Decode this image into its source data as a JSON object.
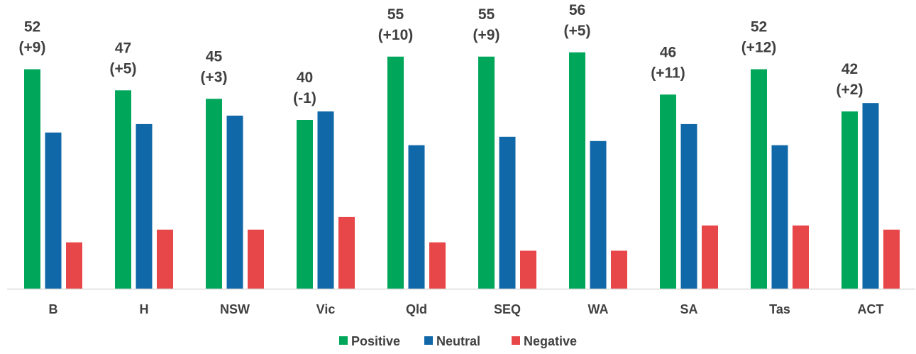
{
  "chart_data": {
    "type": "bar",
    "categories": [
      "B",
      "H",
      "NSW",
      "Vic",
      "Qld",
      "SEQ",
      "WA",
      "SA",
      "Tas",
      "ACT"
    ],
    "series": [
      {
        "name": "Positive",
        "color": "#00A65A",
        "values": [
          52,
          47,
          45,
          40,
          55,
          55,
          56,
          46,
          52,
          42
        ]
      },
      {
        "name": "Neutral",
        "color": "#1068A8",
        "values": [
          37,
          39,
          41,
          42,
          34,
          36,
          35,
          39,
          34,
          44
        ]
      },
      {
        "name": "Negative",
        "color": "#E8474A",
        "values": [
          11,
          14,
          14,
          17,
          11,
          9,
          9,
          15,
          15,
          14
        ]
      }
    ],
    "data_labels": {
      "value_line": [
        "52",
        "47",
        "45",
        "40",
        "55",
        "55",
        "56",
        "46",
        "52",
        "42"
      ],
      "change_line": [
        "(+9)",
        "(+5)",
        "(+3)",
        "(-1)",
        "(+10)",
        "(+9)",
        "(+5)",
        "(+11)",
        "(+12)",
        "(+2)"
      ]
    },
    "ylim": [
      0,
      60
    ],
    "grid": false,
    "legend_position": "bottom-center"
  }
}
